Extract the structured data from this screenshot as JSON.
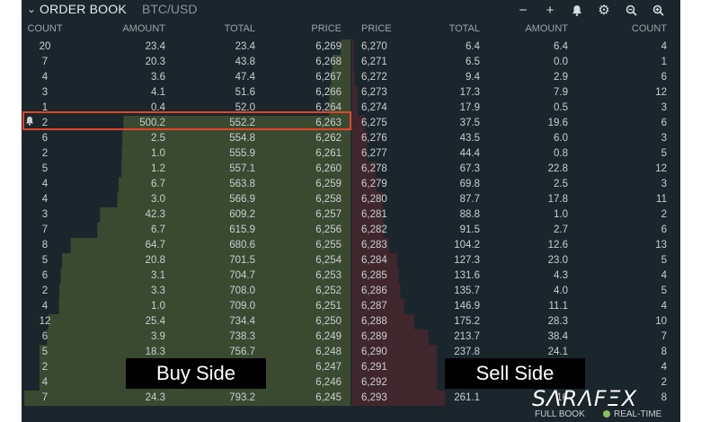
{
  "header": {
    "title": "ORDER BOOK",
    "pair": "BTC/USD"
  },
  "toolbar": [
    "minus-icon",
    "plus-icon",
    "bell-icon",
    "gear-icon",
    "zoom-out-icon",
    "zoom-in-icon"
  ],
  "columns": {
    "bid_count": "COUNT",
    "bid_amount": "AMOUNT",
    "bid_total": "TOTAL",
    "bid_price": "PRICE",
    "ask_price": "PRICE",
    "ask_total": "TOTAL",
    "ask_amount": "AMOUNT",
    "ask_count": "COUNT"
  },
  "bids": [
    [
      "20",
      "23.4",
      "23.4",
      "6,269"
    ],
    [
      "7",
      "20.3",
      "43.8",
      "6,268"
    ],
    [
      "4",
      "3.6",
      "47.4",
      "6,267"
    ],
    [
      "3",
      "4.1",
      "51.6",
      "6,266"
    ],
    [
      "1",
      "0.4",
      "52.0",
      "6,264"
    ],
    [
      "2",
      "500.2",
      "552.2",
      "6,263"
    ],
    [
      "6",
      "2.5",
      "554.8",
      "6,262"
    ],
    [
      "2",
      "1.0",
      "555.9",
      "6,261"
    ],
    [
      "5",
      "1.2",
      "557.1",
      "6,260"
    ],
    [
      "4",
      "6.7",
      "563.8",
      "6,259"
    ],
    [
      "4",
      "3.0",
      "566.9",
      "6,258"
    ],
    [
      "3",
      "42.3",
      "609.2",
      "6,257"
    ],
    [
      "7",
      "6.7",
      "615.9",
      "6,256"
    ],
    [
      "8",
      "64.7",
      "680.6",
      "6,255"
    ],
    [
      "5",
      "20.8",
      "701.5",
      "6,254"
    ],
    [
      "6",
      "3.1",
      "704.7",
      "6,253"
    ],
    [
      "2",
      "3.3",
      "708.0",
      "6,252"
    ],
    [
      "4",
      "1.0",
      "709.0",
      "6,251"
    ],
    [
      "12",
      "25.4",
      "734.4",
      "6,250"
    ],
    [
      "6",
      "3.9",
      "738.3",
      "6,249"
    ],
    [
      "5",
      "18.3",
      "756.7",
      "6,248"
    ],
    [
      "2",
      "",
      "",
      "6,247"
    ],
    [
      "4",
      "",
      "",
      "6,246"
    ],
    [
      "7",
      "24.3",
      "793.2",
      "6,245"
    ]
  ],
  "asks": [
    [
      "6,270",
      "6.4",
      "6.4",
      "4"
    ],
    [
      "6,271",
      "6.5",
      "0.0",
      "1"
    ],
    [
      "6,272",
      "9.4",
      "2.9",
      "6"
    ],
    [
      "6,273",
      "17.3",
      "7.9",
      "12"
    ],
    [
      "6,274",
      "17.9",
      "0.5",
      "3"
    ],
    [
      "6,275",
      "37.5",
      "19.6",
      "6"
    ],
    [
      "6,276",
      "43.5",
      "6.0",
      "3"
    ],
    [
      "6,277",
      "44.4",
      "0.8",
      "5"
    ],
    [
      "6,278",
      "67.3",
      "22.8",
      "12"
    ],
    [
      "6,279",
      "69.8",
      "2.5",
      "3"
    ],
    [
      "6,280",
      "87.7",
      "17.8",
      "11"
    ],
    [
      "6,281",
      "88.8",
      "1.0",
      "2"
    ],
    [
      "6,282",
      "91.5",
      "2.7",
      "6"
    ],
    [
      "6,283",
      "104.2",
      "12.6",
      "13"
    ],
    [
      "6,284",
      "127.3",
      "23.0",
      "5"
    ],
    [
      "6,285",
      "131.6",
      "4.3",
      "4"
    ],
    [
      "6,286",
      "135.7",
      "4.0",
      "5"
    ],
    [
      "6,287",
      "146.9",
      "11.1",
      "4"
    ],
    [
      "6,288",
      "175.2",
      "28.3",
      "10"
    ],
    [
      "6,289",
      "213.7",
      "38.4",
      "7"
    ],
    [
      "6,290",
      "237.8",
      "24.1",
      "8"
    ],
    [
      "6,291",
      "",
      "",
      "4"
    ],
    [
      "6,292",
      "",
      "",
      "2"
    ],
    [
      "6,293",
      "261.1",
      "16",
      "8"
    ]
  ],
  "highlighted_bid_index": 5,
  "depth_max_total": 800,
  "captions": {
    "buy": "Buy Side",
    "sell": "Sell Side"
  },
  "footer": {
    "full_book": "FULL BOOK",
    "real_time": "REAL-TIME"
  },
  "watermark": "SΛRΛFΞX",
  "colors": {
    "panel": "#1b262c",
    "bid_depth": "#3a4a31",
    "ask_depth": "#40262d",
    "highlight": "#e2452b",
    "live_dot": "#8bbf5a"
  }
}
